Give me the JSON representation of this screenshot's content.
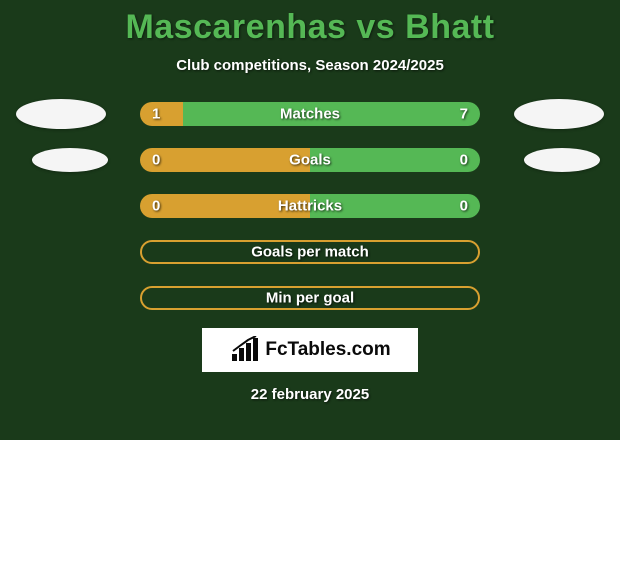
{
  "theme": {
    "widget_bg": "#1a3a1a",
    "accent_left": "#d8a030",
    "accent_right": "#55b855",
    "title_color": "#55b855",
    "text_color": "#ffffff",
    "crest_bg": "#f5f5f5",
    "logo_box_bg": "#ffffff",
    "title_fontsize": 34,
    "subtitle_fontsize": 15,
    "row_label_fontsize": 15
  },
  "header": {
    "title": "Mascarenhas vs Bhatt",
    "subtitle": "Club competitions, Season 2024/2025"
  },
  "rows": [
    {
      "label": "Matches",
      "left_value": "1",
      "right_value": "7",
      "left_pct": 12.5,
      "right_pct": 87.5,
      "show_values": true,
      "show_crests": true,
      "crest_size": "lg",
      "empty": false
    },
    {
      "label": "Goals",
      "left_value": "0",
      "right_value": "0",
      "left_pct": 50,
      "right_pct": 50,
      "show_values": true,
      "show_crests": true,
      "crest_size": "sm",
      "empty": false
    },
    {
      "label": "Hattricks",
      "left_value": "0",
      "right_value": "0",
      "left_pct": 50,
      "right_pct": 50,
      "show_values": true,
      "show_crests": false,
      "crest_size": "sm",
      "empty": false
    },
    {
      "label": "Goals per match",
      "left_value": "",
      "right_value": "",
      "left_pct": 0,
      "right_pct": 0,
      "show_values": false,
      "show_crests": false,
      "crest_size": "sm",
      "empty": true
    },
    {
      "label": "Min per goal",
      "left_value": "",
      "right_value": "",
      "left_pct": 0,
      "right_pct": 0,
      "show_values": false,
      "show_crests": false,
      "crest_size": "sm",
      "empty": true
    }
  ],
  "branding": {
    "site_name": "FcTables.com"
  },
  "footer": {
    "date": "22 february 2025"
  }
}
